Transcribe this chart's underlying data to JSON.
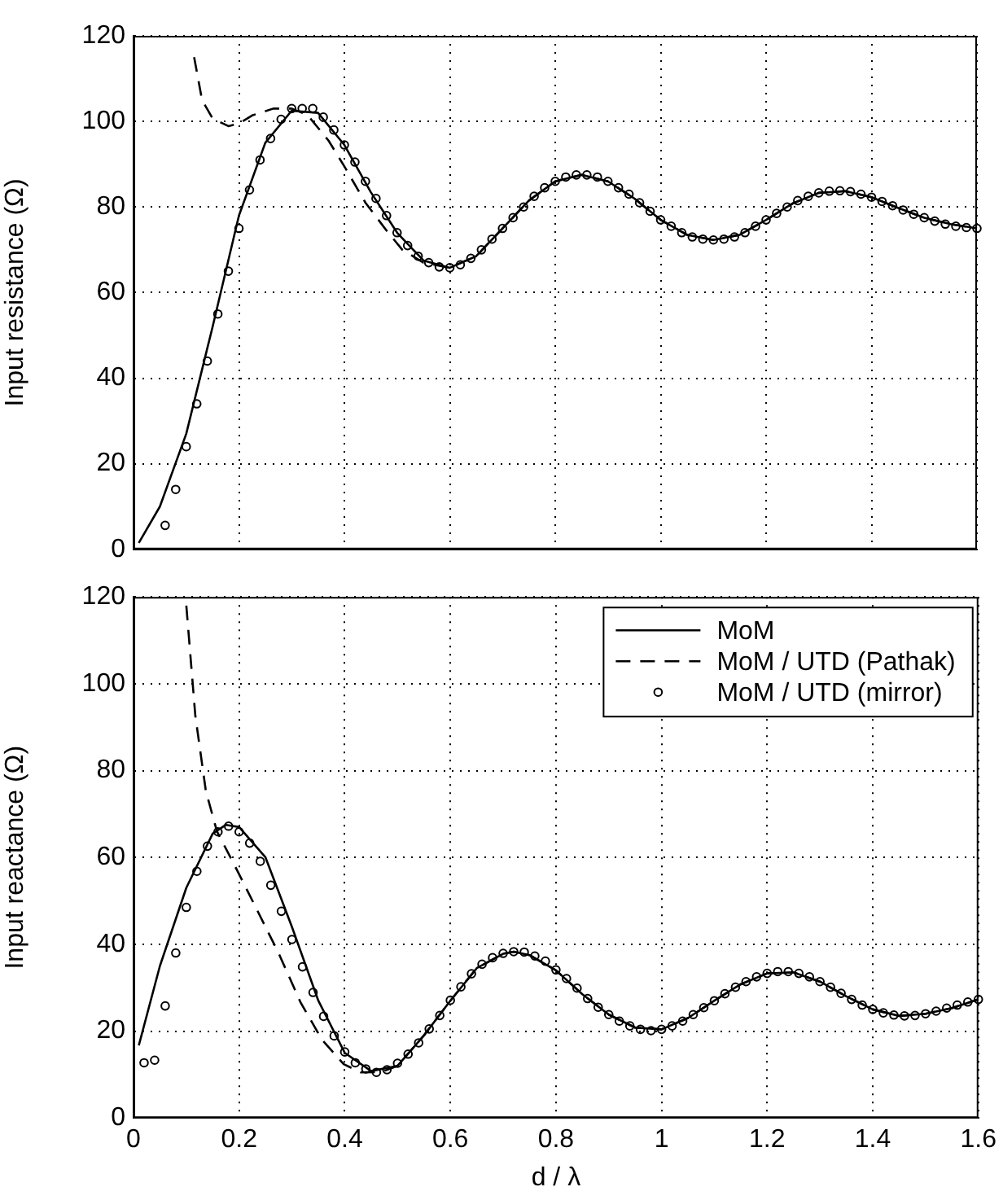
{
  "chart_data": [
    {
      "type": "line",
      "ylabel": "Input resistance (Ω)",
      "xlim": [
        0,
        1.6
      ],
      "xticks": [
        0,
        0.2,
        0.4,
        0.6,
        0.8,
        1,
        1.2,
        1.4,
        1.6
      ],
      "ylim": [
        0,
        120
      ],
      "yticks": [
        0,
        20,
        40,
        60,
        80,
        100,
        120
      ],
      "grid": true,
      "tick_labels": "y",
      "legend": false,
      "series": [
        {
          "line_style": "solid",
          "marker": "none",
          "color": "#000000",
          "x": [
            0.01,
            0.05,
            0.1,
            0.15,
            0.2,
            0.25,
            0.3,
            0.35,
            0.4,
            0.45,
            0.5,
            0.55,
            0.6,
            0.65,
            0.7,
            0.75,
            0.8,
            0.85,
            0.9,
            0.95,
            1,
            1.05,
            1.1,
            1.15,
            1.2,
            1.25,
            1.3,
            1.35,
            1.4,
            1.45,
            1.5,
            1.55,
            1.6
          ],
          "values": [
            1.5,
            10,
            27,
            52,
            78,
            95,
            102.5,
            102,
            94.5,
            83.5,
            74,
            67.5,
            65.8,
            68.5,
            75,
            81.5,
            86,
            87.5,
            86,
            82,
            77,
            73.5,
            72.3,
            73.5,
            77,
            80.8,
            83.3,
            83.7,
            82.3,
            79.8,
            77.5,
            76,
            75
          ]
        },
        {
          "line_style": "dashed",
          "marker": "none",
          "color": "#000000",
          "x": [
            0.115,
            0.13,
            0.15,
            0.18,
            0.2,
            0.225,
            0.265,
            0.3,
            0.33,
            0.37,
            0.4,
            0.44,
            0.48,
            0.51,
            0.55,
            0.6,
            0.65,
            0.7,
            0.75,
            0.8,
            0.85,
            0.9,
            0.95,
            1,
            1.05,
            1.1,
            1.15,
            1.2,
            1.25,
            1.3,
            1.35,
            1.4,
            1.45,
            1.5,
            1.55,
            1.6
          ],
          "values": [
            115,
            105,
            100.7,
            98.9,
            99.5,
            101.4,
            103,
            103,
            101.5,
            95.5,
            89.5,
            81,
            74.5,
            70,
            67,
            65.8,
            68.5,
            75,
            81.5,
            86,
            87.5,
            86,
            82,
            77,
            73.5,
            72.3,
            73.5,
            77,
            80.8,
            83.3,
            83.7,
            82.3,
            79.8,
            77.5,
            76,
            75
          ]
        },
        {
          "type": "scatter",
          "marker": "circle",
          "color": "#000000",
          "x": [
            0.06,
            0.08,
            0.1,
            0.12,
            0.14,
            0.16,
            0.18,
            0.2,
            0.22,
            0.24,
            0.26,
            0.28,
            0.3,
            0.32,
            0.34,
            0.36,
            0.38,
            0.4,
            0.42,
            0.44,
            0.46,
            0.48,
            0.5,
            0.52,
            0.54,
            0.56,
            0.58,
            0.6,
            0.62,
            0.64,
            0.66,
            0.68,
            0.7,
            0.72,
            0.74,
            0.76,
            0.78,
            0.8,
            0.82,
            0.84,
            0.86,
            0.88,
            0.9,
            0.92,
            0.94,
            0.96,
            0.98,
            1,
            1.02,
            1.04,
            1.06,
            1.08,
            1.1,
            1.12,
            1.14,
            1.16,
            1.18,
            1.2,
            1.22,
            1.24,
            1.26,
            1.28,
            1.3,
            1.32,
            1.34,
            1.36,
            1.38,
            1.4,
            1.42,
            1.44,
            1.46,
            1.48,
            1.5,
            1.52,
            1.54,
            1.56,
            1.58,
            1.6
          ],
          "values": [
            5.6,
            14,
            24,
            34,
            44,
            55,
            65,
            75,
            84,
            91,
            96,
            100.5,
            103,
            103,
            103,
            101,
            98,
            94.5,
            90.5,
            86,
            82,
            78,
            74,
            71,
            68.5,
            67,
            66,
            65.8,
            66.5,
            68,
            70,
            72.5,
            75,
            77.5,
            80,
            82.5,
            84.5,
            86,
            87,
            87.5,
            87.5,
            87,
            86,
            84.5,
            83,
            81,
            79,
            77,
            75.5,
            74,
            73,
            72.5,
            72.3,
            72.5,
            73,
            74,
            75.5,
            77,
            78.5,
            80,
            81.5,
            82.5,
            83.3,
            83.7,
            83.8,
            83.6,
            83,
            82.3,
            81.3,
            80.3,
            79.3,
            78.3,
            77.5,
            76.7,
            76,
            75.5,
            75.2,
            75
          ]
        }
      ]
    },
    {
      "type": "line",
      "xlabel": "d / λ",
      "ylabel": "Input reactance (Ω)",
      "xlim": [
        0,
        1.6
      ],
      "xticks": [
        0,
        0.2,
        0.4,
        0.6,
        0.8,
        1,
        1.2,
        1.4,
        1.6
      ],
      "ylim": [
        0,
        120
      ],
      "yticks": [
        0,
        20,
        40,
        60,
        80,
        100,
        120
      ],
      "grid": true,
      "legend": "top right",
      "series": [
        {
          "name": "MoM",
          "line_style": "solid",
          "marker": "none",
          "color": "#000000",
          "x": [
            0.01,
            0.05,
            0.1,
            0.15,
            0.175,
            0.2,
            0.25,
            0.3,
            0.35,
            0.4,
            0.45,
            0.5,
            0.55,
            0.6,
            0.65,
            0.7,
            0.72,
            0.75,
            0.8,
            0.85,
            0.9,
            0.95,
            1,
            1.05,
            1.1,
            1.15,
            1.2,
            1.25,
            1.3,
            1.35,
            1.4,
            1.45,
            1.5,
            1.55,
            1.6
          ],
          "values": [
            16.7,
            35,
            53,
            65.5,
            67.5,
            67,
            60,
            44,
            27,
            15,
            10.8,
            12,
            19,
            27,
            34.5,
            37.8,
            38.3,
            37.5,
            34,
            28.5,
            23.8,
            20.8,
            20.4,
            23,
            27,
            30.8,
            33.3,
            33.5,
            31.4,
            28,
            25,
            23.5,
            24,
            25.3,
            27.3
          ]
        },
        {
          "name": "MoM / UTD (Pathak)",
          "line_style": "dashed",
          "marker": "none",
          "color": "#000000",
          "x": [
            0.1,
            0.117,
            0.137,
            0.158,
            0.193,
            0.234,
            0.275,
            0.316,
            0.357,
            0.398,
            0.43,
            0.47,
            0.5,
            0.55,
            0.6,
            0.65,
            0.7,
            0.72,
            0.75,
            0.8,
            0.85,
            0.9,
            0.95,
            1,
            1.05,
            1.1,
            1.15,
            1.2,
            1.25,
            1.3,
            1.35,
            1.4,
            1.45,
            1.5,
            1.55,
            1.6
          ],
          "values": [
            118,
            92.7,
            75.3,
            66,
            57.8,
            47.9,
            37.9,
            26.7,
            18,
            12.4,
            10.5,
            10.6,
            12,
            19,
            27,
            34.5,
            37.8,
            38.3,
            37.5,
            34,
            28.5,
            23.8,
            20.8,
            20.4,
            23,
            27,
            30.8,
            33.3,
            33.5,
            31.4,
            28,
            25,
            23.5,
            24,
            25.3,
            27.3
          ]
        },
        {
          "name": "MoM / UTD (mirror)",
          "type": "scatter",
          "marker": "circle",
          "color": "#000000",
          "x": [
            0.02,
            0.04,
            0.06,
            0.08,
            0.1,
            0.12,
            0.14,
            0.16,
            0.18,
            0.2,
            0.22,
            0.24,
            0.26,
            0.28,
            0.3,
            0.32,
            0.34,
            0.36,
            0.38,
            0.4,
            0.42,
            0.44,
            0.46,
            0.48,
            0.5,
            0.52,
            0.54,
            0.56,
            0.58,
            0.6,
            0.62,
            0.64,
            0.66,
            0.68,
            0.7,
            0.72,
            0.74,
            0.76,
            0.78,
            0.8,
            0.82,
            0.84,
            0.86,
            0.88,
            0.9,
            0.92,
            0.94,
            0.96,
            0.98,
            1,
            1.02,
            1.04,
            1.06,
            1.08,
            1.1,
            1.12,
            1.14,
            1.16,
            1.18,
            1.2,
            1.22,
            1.24,
            1.26,
            1.28,
            1.3,
            1.32,
            1.34,
            1.36,
            1.38,
            1.4,
            1.42,
            1.44,
            1.46,
            1.48,
            1.5,
            1.52,
            1.54,
            1.56,
            1.58,
            1.6
          ],
          "values": [
            12.7,
            13.3,
            25.8,
            38,
            48.5,
            56.8,
            62.6,
            65.9,
            67.2,
            65.9,
            63.3,
            59.1,
            53.6,
            47.6,
            41.1,
            34.8,
            28.9,
            23.4,
            18.9,
            15.2,
            12.7,
            11.3,
            10.5,
            11.1,
            12.6,
            14.7,
            17.3,
            20.5,
            23.6,
            27.1,
            30.2,
            33.2,
            35.4,
            36.9,
            37.9,
            38.3,
            38.2,
            37.3,
            36.1,
            34.1,
            32.1,
            29.9,
            27.5,
            25.5,
            23.8,
            22.3,
            21.2,
            20.4,
            20.1,
            20.4,
            21.2,
            22.3,
            23.8,
            25.4,
            27,
            28.6,
            30.1,
            31.4,
            32.5,
            33.3,
            33.7,
            33.7,
            33.3,
            32.5,
            31.4,
            30.1,
            28.7,
            27.3,
            26,
            25,
            24.2,
            23.7,
            23.5,
            23.6,
            24,
            24.6,
            25.3,
            26,
            26.7,
            27.3
          ]
        }
      ]
    }
  ]
}
